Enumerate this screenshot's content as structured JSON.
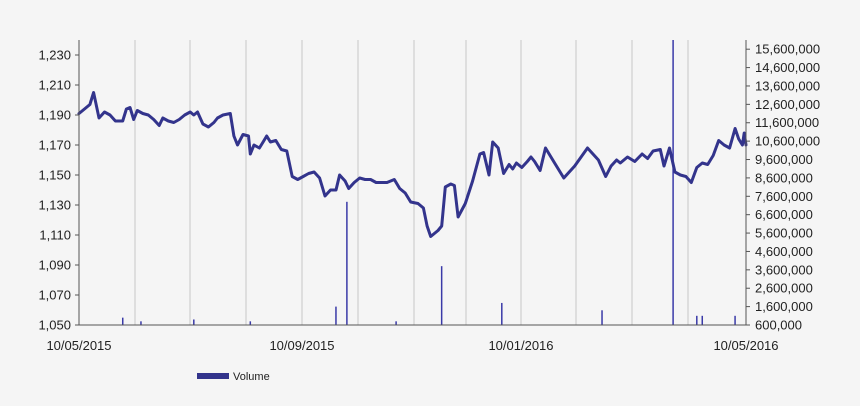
{
  "chart_data": {
    "type": "line",
    "title": "",
    "xlabel": "",
    "ylabel": "",
    "x_range": [
      "2015-05-10",
      "2016-05-10"
    ],
    "x_ticks": [
      "10/05/2015",
      "10/09/2015",
      "10/01/2016",
      "10/05/2016"
    ],
    "y_left": {
      "ylim": [
        1050,
        1240
      ],
      "ticks": [
        "1,050",
        "1,070",
        "1,090",
        "1,110",
        "1,130",
        "1,150",
        "1,170",
        "1,190",
        "1,210",
        "1,230"
      ]
    },
    "y_right": {
      "ylim": [
        600000,
        16100000
      ],
      "ticks": [
        "600,000",
        "1,600,000",
        "2,600,000",
        "3,600,000",
        "4,600,000",
        "5,600,000",
        "6,600,000",
        "7,600,000",
        "8,600,000",
        "9,600,000",
        "10,600,000",
        "11,600,000",
        "12,600,000",
        "13,600,000",
        "14,600,000",
        "15,600,000"
      ]
    },
    "grid": "vertical",
    "legend": {
      "position": "bottom-left",
      "entries": [
        "Volume"
      ]
    },
    "colors": {
      "price": "#33348c",
      "volume": "#3a3aa8",
      "grid": "#c8c8c8"
    },
    "series": [
      {
        "name": "",
        "axis": "left",
        "style": "line",
        "points": [
          [
            "2015-05-10",
            1191
          ],
          [
            "2015-05-13",
            1194
          ],
          [
            "2015-05-16",
            1197
          ],
          [
            "2015-05-18",
            1205
          ],
          [
            "2015-05-21",
            1188
          ],
          [
            "2015-05-24",
            1192
          ],
          [
            "2015-05-27",
            1190
          ],
          [
            "2015-05-30",
            1186
          ],
          [
            "2015-06-03",
            1186
          ],
          [
            "2015-06-05",
            1194
          ],
          [
            "2015-06-07",
            1195
          ],
          [
            "2015-06-09",
            1187
          ],
          [
            "2015-06-11",
            1193
          ],
          [
            "2015-06-14",
            1191
          ],
          [
            "2015-06-17",
            1190
          ],
          [
            "2015-06-20",
            1187
          ],
          [
            "2015-06-23",
            1183
          ],
          [
            "2015-06-25",
            1188
          ],
          [
            "2015-06-28",
            1186
          ],
          [
            "2015-07-01",
            1185
          ],
          [
            "2015-07-04",
            1187
          ],
          [
            "2015-07-07",
            1190
          ],
          [
            "2015-07-10",
            1192
          ],
          [
            "2015-07-12",
            1190
          ],
          [
            "2015-07-14",
            1192
          ],
          [
            "2015-07-17",
            1184
          ],
          [
            "2015-07-20",
            1182
          ],
          [
            "2015-07-23",
            1185
          ],
          [
            "2015-07-25",
            1188
          ],
          [
            "2015-07-28",
            1190
          ],
          [
            "2015-08-01",
            1191
          ],
          [
            "2015-08-03",
            1176
          ],
          [
            "2015-08-05",
            1170
          ],
          [
            "2015-08-08",
            1177
          ],
          [
            "2015-08-11",
            1176
          ],
          [
            "2015-08-12",
            1164
          ],
          [
            "2015-08-14",
            1170
          ],
          [
            "2015-08-17",
            1168
          ],
          [
            "2015-08-19",
            1172
          ],
          [
            "2015-08-21",
            1176
          ],
          [
            "2015-08-23",
            1172
          ],
          [
            "2015-08-26",
            1173
          ],
          [
            "2015-08-29",
            1167
          ],
          [
            "2015-09-01",
            1166
          ],
          [
            "2015-09-04",
            1149
          ],
          [
            "2015-09-07",
            1147
          ],
          [
            "2015-09-10",
            1149
          ],
          [
            "2015-09-13",
            1151
          ],
          [
            "2015-09-16",
            1152
          ],
          [
            "2015-09-19",
            1148
          ],
          [
            "2015-09-22",
            1136
          ],
          [
            "2015-09-25",
            1140
          ],
          [
            "2015-09-28",
            1140
          ],
          [
            "2015-09-30",
            1150
          ],
          [
            "2015-10-03",
            1146
          ],
          [
            "2015-10-05",
            1141
          ],
          [
            "2015-10-08",
            1145
          ],
          [
            "2015-10-11",
            1148
          ],
          [
            "2015-10-14",
            1147
          ],
          [
            "2015-10-17",
            1147
          ],
          [
            "2015-10-20",
            1145
          ],
          [
            "2015-10-23",
            1145
          ],
          [
            "2015-10-26",
            1145
          ],
          [
            "2015-10-30",
            1147
          ],
          [
            "2015-11-02",
            1141
          ],
          [
            "2015-11-05",
            1138
          ],
          [
            "2015-11-08",
            1132
          ],
          [
            "2015-11-12",
            1131
          ],
          [
            "2015-11-15",
            1128
          ],
          [
            "2015-11-17",
            1116
          ],
          [
            "2015-11-19",
            1109
          ],
          [
            "2015-11-23",
            1113
          ],
          [
            "2015-11-25",
            1116
          ],
          [
            "2015-11-27",
            1142
          ],
          [
            "2015-11-30",
            1144
          ],
          [
            "2015-12-02",
            1143
          ],
          [
            "2015-12-04",
            1122
          ],
          [
            "2015-12-08",
            1131
          ],
          [
            "2015-12-12",
            1146
          ],
          [
            "2015-12-16",
            1164
          ],
          [
            "2015-12-18",
            1165
          ],
          [
            "2015-12-21",
            1150
          ],
          [
            "2015-12-23",
            1172
          ],
          [
            "2015-12-26",
            1168
          ],
          [
            "2015-12-29",
            1151
          ],
          [
            "2016-01-01",
            1157
          ],
          [
            "2016-01-03",
            1154
          ],
          [
            "2016-01-05",
            1158
          ],
          [
            "2016-01-08",
            1155
          ],
          [
            "2016-01-11",
            1159
          ],
          [
            "2016-01-13",
            1162
          ],
          [
            "2016-01-15",
            1159
          ],
          [
            "2016-01-18",
            1153
          ],
          [
            "2016-01-21",
            1168
          ],
          [
            "2016-01-26",
            1158
          ],
          [
            "2016-01-31",
            1148
          ],
          [
            "2016-02-06",
            1156
          ],
          [
            "2016-02-13",
            1168
          ],
          [
            "2016-02-19",
            1160
          ],
          [
            "2016-02-23",
            1149
          ],
          [
            "2016-02-26",
            1156
          ],
          [
            "2016-02-29",
            1160
          ],
          [
            "2016-03-02",
            1158
          ],
          [
            "2016-03-06",
            1162
          ],
          [
            "2016-03-10",
            1159
          ],
          [
            "2016-03-14",
            1164
          ],
          [
            "2016-03-17",
            1161
          ],
          [
            "2016-03-20",
            1166
          ],
          [
            "2016-03-24",
            1167
          ],
          [
            "2016-03-26",
            1156
          ],
          [
            "2016-03-29",
            1168
          ],
          [
            "2016-04-01",
            1152
          ],
          [
            "2016-04-04",
            1150
          ],
          [
            "2016-04-07",
            1149
          ],
          [
            "2016-04-10",
            1145
          ],
          [
            "2016-04-13",
            1155
          ],
          [
            "2016-04-16",
            1158
          ],
          [
            "2016-04-19",
            1157
          ],
          [
            "2016-04-22",
            1163
          ],
          [
            "2016-04-25",
            1173
          ],
          [
            "2016-04-28",
            1170
          ],
          [
            "2016-05-01",
            1168
          ],
          [
            "2016-05-04",
            1181
          ],
          [
            "2016-05-06",
            1174
          ],
          [
            "2016-05-08",
            1170
          ],
          [
            "2016-05-09",
            1178
          ],
          [
            "2016-05-10",
            1170
          ]
        ]
      },
      {
        "name": "Volume",
        "axis": "right",
        "style": "bar",
        "points": [
          [
            "2015-06-03",
            1000000
          ],
          [
            "2015-06-13",
            800000
          ],
          [
            "2015-07-12",
            900000
          ],
          [
            "2015-08-12",
            800000
          ],
          [
            "2015-09-28",
            1600000
          ],
          [
            "2015-10-04",
            7300000
          ],
          [
            "2015-10-31",
            800000
          ],
          [
            "2015-11-25",
            3800000
          ],
          [
            "2015-12-28",
            1800000
          ],
          [
            "2016-02-21",
            1400000
          ],
          [
            "2016-03-31",
            16100000
          ],
          [
            "2016-04-13",
            1100000
          ],
          [
            "2016-04-16",
            1100000
          ],
          [
            "2016-05-04",
            1100000
          ]
        ]
      }
    ]
  }
}
